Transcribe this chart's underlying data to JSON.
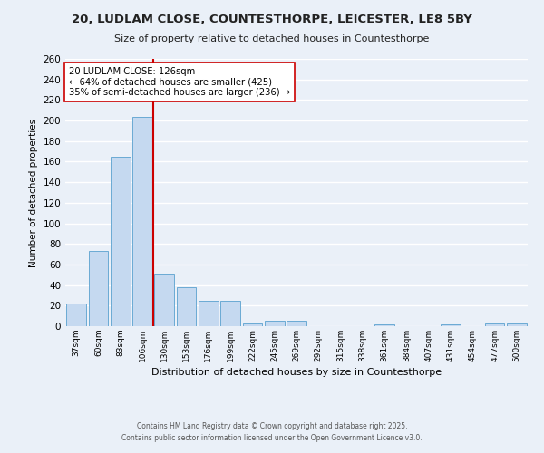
{
  "title": "20, LUDLAM CLOSE, COUNTESTHORPE, LEICESTER, LE8 5BY",
  "subtitle": "Size of property relative to detached houses in Countesthorpe",
  "xlabel": "Distribution of detached houses by size in Countesthorpe",
  "ylabel": "Number of detached properties",
  "categories": [
    "37sqm",
    "60sqm",
    "83sqm",
    "106sqm",
    "130sqm",
    "153sqm",
    "176sqm",
    "199sqm",
    "222sqm",
    "245sqm",
    "269sqm",
    "292sqm",
    "315sqm",
    "338sqm",
    "361sqm",
    "384sqm",
    "407sqm",
    "431sqm",
    "454sqm",
    "477sqm",
    "500sqm"
  ],
  "values": [
    22,
    73,
    165,
    204,
    51,
    38,
    25,
    25,
    3,
    5,
    5,
    0,
    0,
    0,
    2,
    0,
    0,
    2,
    0,
    3,
    3
  ],
  "bar_color": "#c5d9f0",
  "bar_edge_color": "#6aaad4",
  "background_color": "#eaf0f8",
  "grid_color": "#ffffff",
  "property_label": "20 LUDLAM CLOSE: 126sqm",
  "annotation_line1": "← 64% of detached houses are smaller (425)",
  "annotation_line2": "35% of semi-detached houses are larger (236) →",
  "vline_color": "#cc0000",
  "vline_x": 3.5,
  "annotation_box_color": "#ffffff",
  "annotation_box_edge": "#cc0000",
  "ylim": [
    0,
    260
  ],
  "yticks": [
    0,
    20,
    40,
    60,
    80,
    100,
    120,
    140,
    160,
    180,
    200,
    220,
    240,
    260
  ],
  "footer_line1": "Contains HM Land Registry data © Crown copyright and database right 2025.",
  "footer_line2": "Contains public sector information licensed under the Open Government Licence v3.0."
}
